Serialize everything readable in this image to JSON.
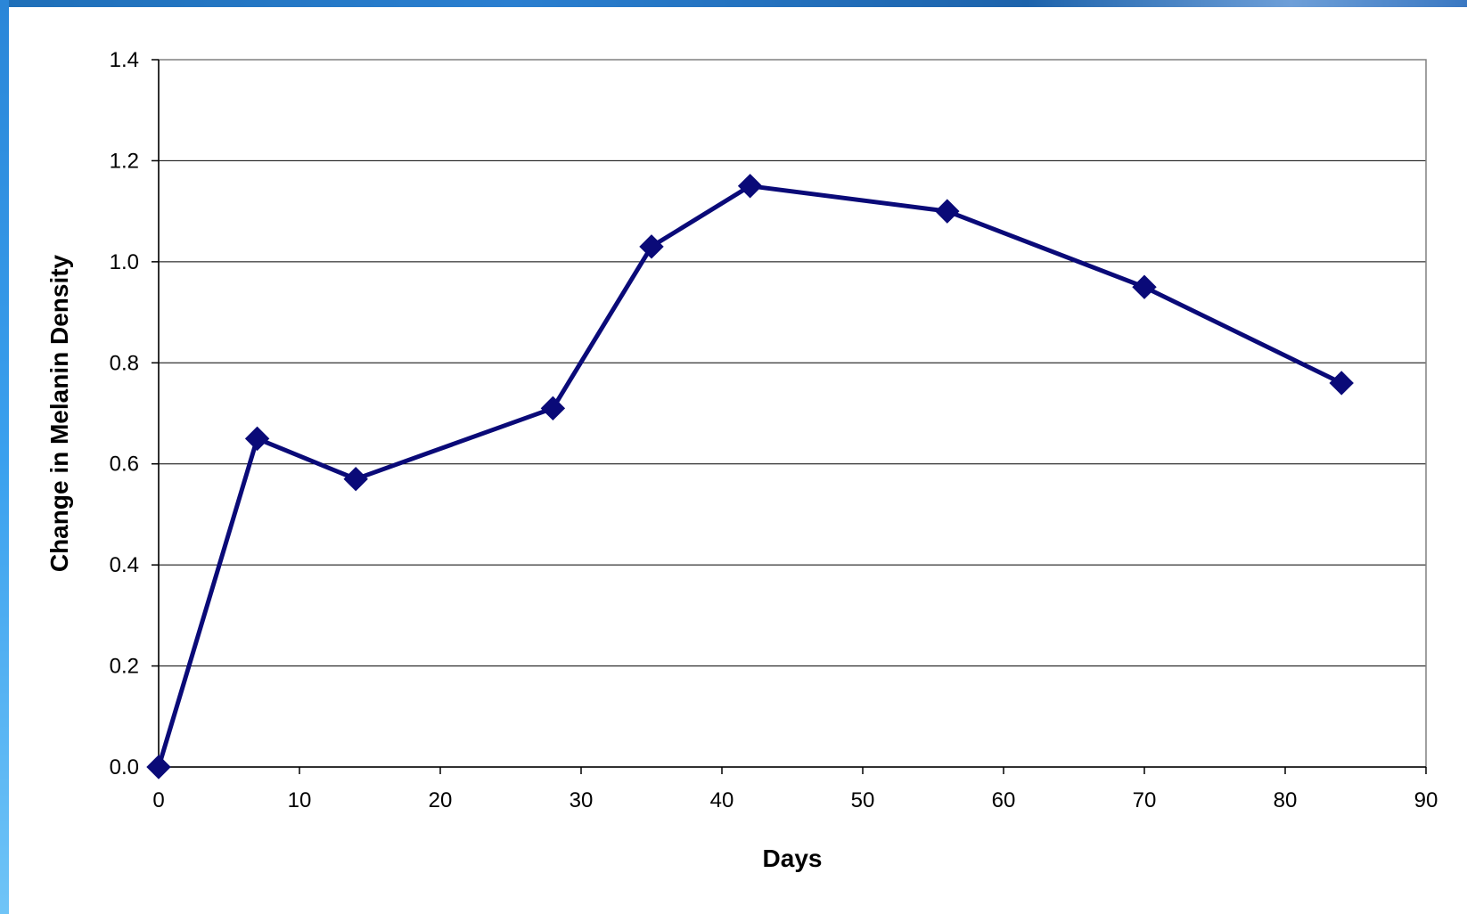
{
  "chart_data": {
    "type": "line",
    "xlabel": "Days",
    "ylabel": "Change in Melanin Density",
    "xlim": [
      0,
      90
    ],
    "ylim": [
      0,
      1.4
    ],
    "x_ticks": [
      "0",
      "10",
      "20",
      "30",
      "40",
      "50",
      "60",
      "70",
      "80",
      "90"
    ],
    "y_ticks": [
      "0.0",
      "0.2",
      "0.4",
      "0.6",
      "0.8",
      "1.0",
      "1.2",
      "1.4"
    ],
    "grid": "horizontal",
    "legend": "none",
    "marker": "diamond",
    "series": [
      {
        "color": "#0a0a78",
        "x": [
          0,
          7,
          14,
          28,
          35,
          42,
          56,
          70,
          84
        ],
        "y": [
          0.0,
          0.65,
          0.57,
          0.71,
          1.03,
          1.15,
          1.1,
          0.95,
          0.76
        ]
      }
    ]
  }
}
